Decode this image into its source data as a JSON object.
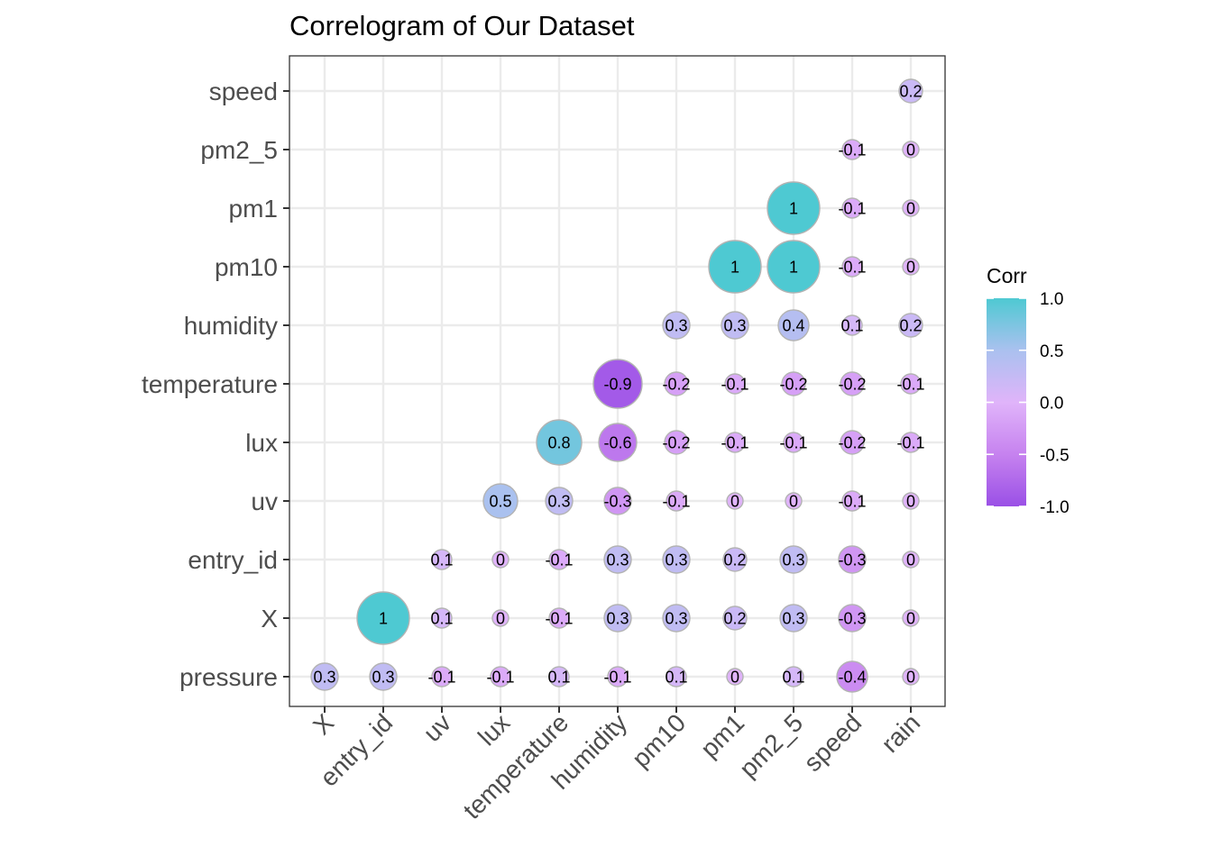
{
  "chart_data": {
    "type": "heatmap",
    "title": "Correlogram of Our Dataset",
    "xlabel": "",
    "ylabel": "",
    "x_categories": [
      "X",
      "entry_id",
      "uv",
      "lux",
      "temperature",
      "humidity",
      "pm10",
      "pm1",
      "pm2_5",
      "speed",
      "rain"
    ],
    "y_categories": [
      "pressure",
      "X",
      "entry_id",
      "uv",
      "lux",
      "temperature",
      "humidity",
      "pm10",
      "pm1",
      "pm2_5",
      "speed"
    ],
    "cells": [
      {
        "x": "X",
        "y": "pressure",
        "value": 0.3
      },
      {
        "x": "entry_id",
        "y": "pressure",
        "value": 0.3
      },
      {
        "x": "uv",
        "y": "pressure",
        "value": -0.1
      },
      {
        "x": "lux",
        "y": "pressure",
        "value": -0.1
      },
      {
        "x": "temperature",
        "y": "pressure",
        "value": 0.1
      },
      {
        "x": "humidity",
        "y": "pressure",
        "value": -0.1
      },
      {
        "x": "pm10",
        "y": "pressure",
        "value": 0.1
      },
      {
        "x": "pm1",
        "y": "pressure",
        "value": 0
      },
      {
        "x": "pm2_5",
        "y": "pressure",
        "value": 0.1
      },
      {
        "x": "speed",
        "y": "pressure",
        "value": -0.4
      },
      {
        "x": "rain",
        "y": "pressure",
        "value": 0
      },
      {
        "x": "entry_id",
        "y": "X",
        "value": 1
      },
      {
        "x": "uv",
        "y": "X",
        "value": 0.1
      },
      {
        "x": "lux",
        "y": "X",
        "value": 0
      },
      {
        "x": "temperature",
        "y": "X",
        "value": -0.1
      },
      {
        "x": "humidity",
        "y": "X",
        "value": 0.3
      },
      {
        "x": "pm10",
        "y": "X",
        "value": 0.3
      },
      {
        "x": "pm1",
        "y": "X",
        "value": 0.2
      },
      {
        "x": "pm2_5",
        "y": "X",
        "value": 0.3
      },
      {
        "x": "speed",
        "y": "X",
        "value": -0.3
      },
      {
        "x": "rain",
        "y": "X",
        "value": 0
      },
      {
        "x": "uv",
        "y": "entry_id",
        "value": 0.1
      },
      {
        "x": "lux",
        "y": "entry_id",
        "value": 0
      },
      {
        "x": "temperature",
        "y": "entry_id",
        "value": -0.1
      },
      {
        "x": "humidity",
        "y": "entry_id",
        "value": 0.3
      },
      {
        "x": "pm10",
        "y": "entry_id",
        "value": 0.3
      },
      {
        "x": "pm1",
        "y": "entry_id",
        "value": 0.2
      },
      {
        "x": "pm2_5",
        "y": "entry_id",
        "value": 0.3
      },
      {
        "x": "speed",
        "y": "entry_id",
        "value": -0.3
      },
      {
        "x": "rain",
        "y": "entry_id",
        "value": 0
      },
      {
        "x": "lux",
        "y": "uv",
        "value": 0.5
      },
      {
        "x": "temperature",
        "y": "uv",
        "value": 0.3
      },
      {
        "x": "humidity",
        "y": "uv",
        "value": -0.3
      },
      {
        "x": "pm10",
        "y": "uv",
        "value": -0.1
      },
      {
        "x": "pm1",
        "y": "uv",
        "value": 0
      },
      {
        "x": "pm2_5",
        "y": "uv",
        "value": 0
      },
      {
        "x": "speed",
        "y": "uv",
        "value": -0.1
      },
      {
        "x": "rain",
        "y": "uv",
        "value": 0
      },
      {
        "x": "temperature",
        "y": "lux",
        "value": 0.8
      },
      {
        "x": "humidity",
        "y": "lux",
        "value": -0.6
      },
      {
        "x": "pm10",
        "y": "lux",
        "value": -0.2
      },
      {
        "x": "pm1",
        "y": "lux",
        "value": -0.1
      },
      {
        "x": "pm2_5",
        "y": "lux",
        "value": -0.1
      },
      {
        "x": "speed",
        "y": "lux",
        "value": -0.2
      },
      {
        "x": "rain",
        "y": "lux",
        "value": -0.1
      },
      {
        "x": "humidity",
        "y": "temperature",
        "value": -0.9
      },
      {
        "x": "pm10",
        "y": "temperature",
        "value": -0.2
      },
      {
        "x": "pm1",
        "y": "temperature",
        "value": -0.1
      },
      {
        "x": "pm2_5",
        "y": "temperature",
        "value": -0.2
      },
      {
        "x": "speed",
        "y": "temperature",
        "value": -0.2
      },
      {
        "x": "rain",
        "y": "temperature",
        "value": -0.1
      },
      {
        "x": "pm10",
        "y": "humidity",
        "value": 0.3
      },
      {
        "x": "pm1",
        "y": "humidity",
        "value": 0.3
      },
      {
        "x": "pm2_5",
        "y": "humidity",
        "value": 0.4
      },
      {
        "x": "speed",
        "y": "humidity",
        "value": 0.1
      },
      {
        "x": "rain",
        "y": "humidity",
        "value": 0.2
      },
      {
        "x": "pm1",
        "y": "pm10",
        "value": 1
      },
      {
        "x": "pm2_5",
        "y": "pm10",
        "value": 1
      },
      {
        "x": "speed",
        "y": "pm10",
        "value": -0.1
      },
      {
        "x": "rain",
        "y": "pm10",
        "value": 0
      },
      {
        "x": "pm2_5",
        "y": "pm1",
        "value": 1
      },
      {
        "x": "speed",
        "y": "pm1",
        "value": -0.1
      },
      {
        "x": "rain",
        "y": "pm1",
        "value": 0
      },
      {
        "x": "speed",
        "y": "pm2_5",
        "value": -0.1
      },
      {
        "x": "rain",
        "y": "pm2_5",
        "value": 0
      },
      {
        "x": "rain",
        "y": "speed",
        "value": 0.2
      }
    ],
    "legend": {
      "title": "Corr",
      "ticks": [
        "1.0",
        "0.5",
        "0.0",
        "-0.5",
        "-1.0"
      ],
      "tick_values": [
        1.0,
        0.5,
        0.0,
        -0.5,
        -1.0
      ],
      "placement": "right"
    },
    "colors": {
      "high": "#4ec9d2",
      "mid": "#e0b4fa",
      "low": "#9a50e6",
      "circle_outline": "#b3b3b3",
      "grid": "#ebebeb",
      "panel_border": "#333333"
    },
    "grid": true
  }
}
